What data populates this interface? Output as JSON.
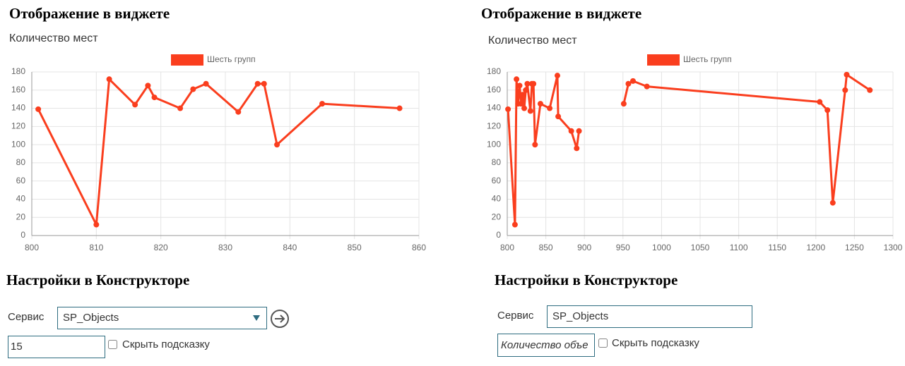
{
  "left": {
    "heading": "Отображение в виджете",
    "settings_heading": "Настройки в Конструкторе",
    "service_label": "Сервис",
    "service_value": "SP_Objects",
    "count_value": "15",
    "hide_hint_label": "Скрыть подсказку"
  },
  "right": {
    "heading": "Отображение в виджете",
    "settings_heading": "Настройки в Конструкторе",
    "service_label": "Сервис",
    "service_value": "SP_Objects",
    "count_placeholder": "Количество объе",
    "hide_hint_label": "Скрыть подсказку"
  },
  "chart_data": [
    {
      "type": "line",
      "title": "Количество мест",
      "x": [
        801,
        810,
        812,
        816,
        818,
        819,
        823,
        825,
        827,
        832,
        835,
        836,
        838,
        845,
        857
      ],
      "series": [
        {
          "name": "Шесть групп",
          "color": "#fa3e1e",
          "values": [
            139,
            12,
            172,
            144,
            165,
            152,
            140,
            161,
            167,
            136,
            167,
            167,
            100,
            145,
            140
          ]
        }
      ],
      "xlim": [
        800,
        860
      ],
      "xticks": [
        800,
        810,
        820,
        830,
        840,
        850,
        860
      ],
      "ylim": [
        0,
        180
      ],
      "yticks": [
        0,
        20,
        40,
        60,
        80,
        100,
        120,
        140,
        160,
        180
      ],
      "grid": true
    },
    {
      "type": "line",
      "title": "Количество мест",
      "x": [
        801,
        810,
        812,
        814,
        816,
        818,
        820,
        822,
        824,
        826,
        830,
        832,
        834,
        836,
        843,
        855,
        865,
        866,
        883,
        890,
        893,
        null,
        951,
        957,
        963,
        981,
        1205,
        1215,
        1222,
        1238,
        1240,
        1270
      ],
      "series": [
        {
          "name": "Шесть групп",
          "color": "#fa3e1e",
          "values": [
            139,
            12,
            172,
            145,
            165,
            145,
            155,
            140,
            160,
            167,
            137,
            167,
            167,
            100,
            145,
            140,
            176,
            131,
            115,
            96,
            115,
            null,
            145,
            167,
            170,
            164,
            147,
            138,
            36,
            160,
            177,
            160
          ]
        }
      ],
      "xlim": [
        800,
        1300
      ],
      "xticks": [
        800,
        850,
        900,
        950,
        1000,
        1050,
        1100,
        1150,
        1200,
        1250,
        1300
      ],
      "ylim": [
        0,
        180
      ],
      "yticks": [
        0,
        20,
        40,
        60,
        80,
        100,
        120,
        140,
        160,
        180
      ],
      "grid": true
    }
  ]
}
